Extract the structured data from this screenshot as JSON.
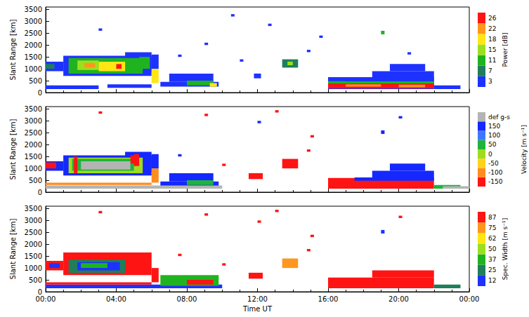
{
  "chart_data": [
    {
      "type": "heatmap",
      "y_label": "Slant Range [km]",
      "xlim": [
        0,
        24
      ],
      "xticks": [
        {
          "value": 0,
          "label": "00:00"
        },
        {
          "value": 4,
          "label": "04:00"
        },
        {
          "value": 8,
          "label": "08:00"
        },
        {
          "value": 12,
          "label": "12:00"
        },
        {
          "value": 16,
          "label": "16:00"
        },
        {
          "value": 20,
          "label": "20:00"
        },
        {
          "value": 24,
          "label": "00:00"
        }
      ],
      "ylim": [
        0,
        3600
      ],
      "yticks": [
        0,
        500,
        1000,
        1500,
        2000,
        2500,
        3000,
        3500
      ],
      "tick_labels": "y",
      "colorbar": {
        "label": "Power [dB]",
        "levels": [
          3,
          7,
          11,
          15,
          18,
          22,
          26
        ],
        "colors": [
          "#1e32ff",
          "#1f7f5a",
          "#1fb41f",
          "#9be01e",
          "#ffe614",
          "#ff961e",
          "#ff1414"
        ]
      },
      "cells": [
        [
          0,
          1,
          900,
          1300,
          5
        ],
        [
          0,
          0.5,
          1000,
          1200,
          9
        ],
        [
          1,
          6,
          700,
          1550,
          5
        ],
        [
          4.5,
          6,
          850,
          1700,
          5
        ],
        [
          1.3,
          5.5,
          800,
          1450,
          12
        ],
        [
          1.8,
          3,
          950,
          1350,
          16
        ],
        [
          3,
          4.5,
          900,
          1300,
          19
        ],
        [
          2.2,
          2.8,
          1050,
          1250,
          23
        ],
        [
          4,
          4.3,
          1000,
          1200,
          27
        ],
        [
          5.3,
          5.9,
          1000,
          1500,
          13
        ],
        [
          6,
          6.4,
          400,
          1000,
          20
        ],
        [
          6,
          6.4,
          1000,
          1600,
          5
        ],
        [
          0,
          3,
          150,
          300,
          5
        ],
        [
          3.5,
          6,
          200,
          350,
          5
        ],
        [
          6.5,
          9.8,
          250,
          450,
          5
        ],
        [
          7,
          9.5,
          450,
          800,
          5
        ],
        [
          8,
          9.5,
          300,
          500,
          12
        ],
        [
          9.3,
          9.7,
          250,
          400,
          20
        ],
        [
          11.8,
          12.2,
          600,
          800,
          5
        ],
        [
          13.4,
          14.3,
          1050,
          1400,
          9
        ],
        [
          13.7,
          14,
          1150,
          1300,
          16
        ],
        [
          16,
          22,
          150,
          650,
          5
        ],
        [
          16,
          22,
          180,
          380,
          27
        ],
        [
          17,
          19,
          250,
          350,
          23
        ],
        [
          20,
          21.5,
          220,
          330,
          23
        ],
        [
          16,
          22,
          380,
          480,
          13
        ],
        [
          17,
          22,
          480,
          600,
          5
        ],
        [
          18.5,
          22,
          600,
          900,
          5
        ],
        [
          19.5,
          21.5,
          900,
          1200,
          5
        ],
        [
          19,
          19.2,
          2450,
          2600,
          12
        ],
        [
          22,
          23.5,
          150,
          300,
          5
        ],
        [
          10.5,
          10.7,
          3200,
          3300,
          5
        ],
        [
          14.8,
          15,
          1700,
          1800,
          5
        ],
        [
          9,
          9.2,
          2000,
          2100,
          5
        ],
        [
          12.6,
          12.8,
          2800,
          2900,
          5
        ],
        [
          3,
          3.2,
          2600,
          2700,
          5
        ],
        [
          15.5,
          15.7,
          2300,
          2400,
          5
        ],
        [
          7.5,
          7.7,
          1500,
          1600,
          5
        ],
        [
          11,
          11.2,
          1300,
          1400,
          5
        ],
        [
          20.5,
          20.7,
          1600,
          1700,
          5
        ]
      ]
    },
    {
      "type": "heatmap",
      "y_label": "Slant Range [km]",
      "xlim": [
        0,
        24
      ],
      "xticks": [
        {
          "value": 0,
          "label": "00:00"
        },
        {
          "value": 4,
          "label": "04:00"
        },
        {
          "value": 8,
          "label": "08:00"
        },
        {
          "value": 12,
          "label": "12:00"
        },
        {
          "value": 16,
          "label": "16:00"
        },
        {
          "value": 20,
          "label": "20:00"
        },
        {
          "value": 24,
          "label": "00:00"
        }
      ],
      "ylim": [
        0,
        3600
      ],
      "yticks": [
        0,
        500,
        1000,
        1500,
        2000,
        2500,
        3000,
        3500
      ],
      "tick_labels": "y",
      "colorbar": {
        "label": "Velocity [m s⁻¹]",
        "levels": [
          -150,
          -100,
          -50,
          0,
          50,
          100,
          150
        ],
        "colors": [
          "#ff1414",
          "#ff8c1e",
          "#ffd21e",
          "#a0dc1e",
          "#1eb43c",
          "#3c78ff",
          "#1428ff"
        ]
      },
      "ground_scatter": {
        "label": "def g-s",
        "color": "#b4b4b4",
        "cells": [
          [
            2,
            4.8,
            950,
            1300
          ],
          [
            0,
            10,
            150,
            280
          ],
          [
            22.5,
            24,
            150,
            250
          ]
        ]
      },
      "cells": [
        [
          0,
          1,
          900,
          1300,
          150
        ],
        [
          0,
          0.6,
          1000,
          1250,
          -160
        ],
        [
          1,
          6,
          700,
          1550,
          160
        ],
        [
          4.5,
          6,
          850,
          1700,
          160
        ],
        [
          1.3,
          5.5,
          800,
          1450,
          10
        ],
        [
          1.5,
          5,
          900,
          1400,
          60
        ],
        [
          1.6,
          1.8,
          800,
          1500,
          -160
        ],
        [
          5,
          5.3,
          1100,
          1600,
          -160
        ],
        [
          4.8,
          5.1,
          1200,
          1550,
          -110
        ],
        [
          6,
          6.4,
          400,
          1000,
          -60
        ],
        [
          6,
          6.4,
          1000,
          1600,
          160
        ],
        [
          0,
          6,
          300,
          400,
          -60
        ],
        [
          6.5,
          9.8,
          250,
          450,
          160
        ],
        [
          7,
          9.5,
          450,
          800,
          160
        ],
        [
          8,
          9.5,
          300,
          500,
          60
        ],
        [
          11.5,
          12.3,
          550,
          800,
          -160
        ],
        [
          13.4,
          14.3,
          1000,
          1400,
          -160
        ],
        [
          16,
          22,
          150,
          600,
          -160
        ],
        [
          17.5,
          22,
          480,
          620,
          160
        ],
        [
          18.5,
          22,
          600,
          900,
          160
        ],
        [
          19.5,
          21.5,
          900,
          1200,
          160
        ],
        [
          19,
          19.2,
          2450,
          2600,
          160
        ],
        [
          22,
          23.5,
          150,
          300,
          60
        ],
        [
          3,
          3.2,
          3300,
          3400,
          -160
        ],
        [
          9,
          9.2,
          3200,
          3300,
          -160
        ],
        [
          12,
          12.2,
          2900,
          3000,
          160
        ],
        [
          15,
          15.2,
          2300,
          2400,
          -160
        ],
        [
          13,
          13.2,
          3350,
          3450,
          -160
        ],
        [
          10,
          10.2,
          1100,
          1200,
          -160
        ],
        [
          20,
          20.2,
          3100,
          3200,
          160
        ],
        [
          14.8,
          15,
          1700,
          1800,
          -160
        ],
        [
          7.5,
          7.7,
          1500,
          1600,
          160
        ]
      ]
    },
    {
      "type": "heatmap",
      "y_label": "Slant Range [km]",
      "x_label": "Time UT",
      "xlim": [
        0,
        24
      ],
      "xticks": [
        {
          "value": 0,
          "label": "00:00"
        },
        {
          "value": 4,
          "label": "04:00"
        },
        {
          "value": 8,
          "label": "08:00"
        },
        {
          "value": 12,
          "label": "12:00"
        },
        {
          "value": 16,
          "label": "16:00"
        },
        {
          "value": 20,
          "label": "20:00"
        },
        {
          "value": 24,
          "label": "00:00"
        }
      ],
      "ylim": [
        0,
        3600
      ],
      "yticks": [
        0,
        500,
        1000,
        1500,
        2000,
        2500,
        3000,
        3500
      ],
      "colorbar": {
        "label": "Spec. Width [m s⁻¹]",
        "levels": [
          12,
          25,
          37,
          50,
          62,
          75,
          87
        ],
        "colors": [
          "#1e32ff",
          "#1f7f5a",
          "#1fb41f",
          "#9be01e",
          "#ffe614",
          "#ff961e",
          "#ff1414"
        ]
      },
      "cells": [
        [
          0,
          1,
          900,
          1300,
          90
        ],
        [
          0.2,
          0.8,
          1000,
          1200,
          20
        ],
        [
          1,
          6,
          700,
          1650,
          90
        ],
        [
          1.3,
          4.5,
          800,
          1350,
          30
        ],
        [
          1.8,
          4.2,
          900,
          1250,
          15
        ],
        [
          2,
          3.5,
          1000,
          1200,
          45
        ],
        [
          6,
          6.4,
          400,
          1000,
          90
        ],
        [
          0,
          10,
          150,
          300,
          20
        ],
        [
          0,
          6,
          300,
          400,
          90
        ],
        [
          6.5,
          9.8,
          250,
          700,
          40
        ],
        [
          8,
          9.5,
          300,
          500,
          90
        ],
        [
          11.5,
          12.3,
          550,
          800,
          90
        ],
        [
          13.4,
          14.3,
          1000,
          1400,
          80
        ],
        [
          16,
          22,
          150,
          600,
          90
        ],
        [
          19,
          19.2,
          2450,
          2600,
          20
        ],
        [
          22,
          23.5,
          150,
          300,
          30
        ],
        [
          3,
          3.2,
          3300,
          3400,
          90
        ],
        [
          9,
          9.2,
          3200,
          3300,
          90
        ],
        [
          12,
          12.2,
          2900,
          3000,
          90
        ],
        [
          15,
          15.2,
          2300,
          2400,
          90
        ],
        [
          13,
          13.2,
          3350,
          3450,
          90
        ],
        [
          10,
          10.2,
          1100,
          1200,
          90
        ],
        [
          20,
          20.2,
          3100,
          3200,
          90
        ],
        [
          14.8,
          15,
          1700,
          1800,
          90
        ],
        [
          7.5,
          7.7,
          1500,
          1600,
          90
        ],
        [
          18.5,
          22,
          600,
          900,
          90
        ]
      ]
    }
  ]
}
